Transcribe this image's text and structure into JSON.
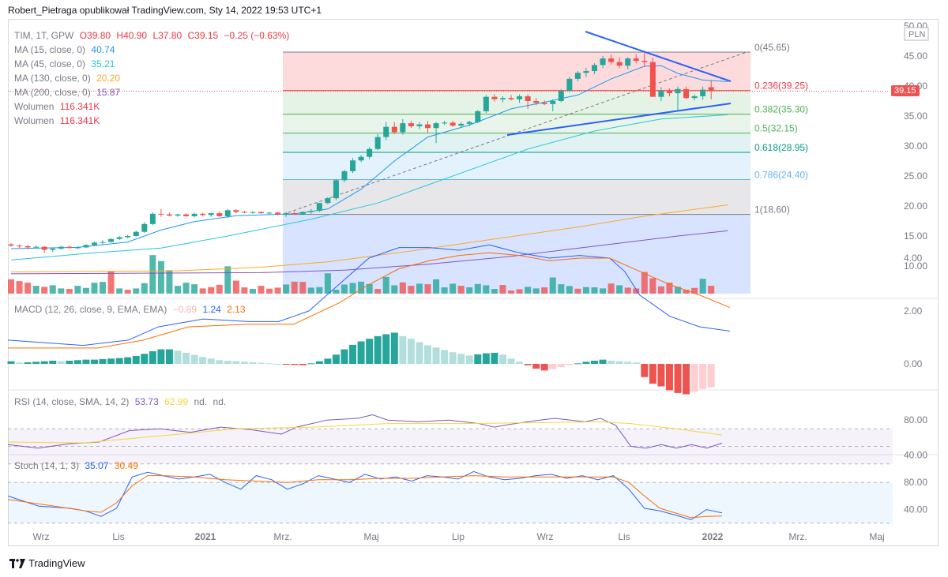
{
  "header": {
    "text": "Robert_Pietraga opublikował TradingView.com, Sty 14, 2022 19:53 UTC+1"
  },
  "main_legend": {
    "symbol": "TIM, 1T, GPW",
    "o": "O39.80",
    "h": "H40.90",
    "l": "L37.80",
    "c": "C39.15",
    "chg": "−0.25 (−0.63%)",
    "ma": [
      {
        "label": "MA (15, close, 0)",
        "value": "40.74",
        "color": "#2196f3"
      },
      {
        "label": "MA (45, close, 0)",
        "value": "35.21",
        "color": "#26c6da"
      },
      {
        "label": "MA (130, close, 0)",
        "value": "20.20",
        "color": "#ffa726"
      },
      {
        "label": "MA (200, close, 0)",
        "value": "15.87",
        "color": "#7e57c2"
      }
    ],
    "volume": [
      {
        "label": "Wolumen",
        "value": "116.341K"
      },
      {
        "label": "Wolumen",
        "value": "116.341K"
      }
    ]
  },
  "price_axis": {
    "currency": "PLN",
    "ticks": [
      "50.00",
      "45.00",
      "40.00",
      "35.00",
      "30.00",
      "25.00",
      "20.00",
      "15.00",
      "10.00"
    ],
    "last_price": "39.15"
  },
  "fib_levels": [
    {
      "label": "0(45.65)",
      "value": 45.65,
      "color": "#787b86"
    },
    {
      "label": "0.236(39.25)",
      "value": 39.25,
      "color": "#f23645"
    },
    {
      "label": "0.382(35.30)",
      "value": 35.3,
      "color": "#4caf50"
    },
    {
      "label": "0.5(32.15)",
      "value": 32.15,
      "color": "#4caf50"
    },
    {
      "label": "0.618(28.95)",
      "value": 28.95,
      "color": "#089981"
    },
    {
      "label": "0.786(24.40)",
      "value": 24.4,
      "color": "#64b5f6"
    },
    {
      "label": "1(18.60)",
      "value": 18.6,
      "color": "#787b86"
    }
  ],
  "macd_legend": {
    "label": "MACD (12, 26, close, 9, EMA, EMA)",
    "hist": "−0.89",
    "macd": "1.24",
    "signal": "2.13"
  },
  "macd_axis": {
    "ticks": [
      "4.00",
      "2.00",
      "0.00"
    ]
  },
  "rsi_legend": {
    "label": "RSI (14, close, SMA, 14, 2)",
    "rsi": "53.73",
    "ma": "62.99",
    "n1": "nd.",
    "n2": "nd."
  },
  "rsi_axis": {
    "ticks": [
      "80.00",
      "40.00"
    ]
  },
  "stoch_legend": {
    "label": "Stoch (14, 1, 3)",
    "k": "35.07",
    "d": "30.49"
  },
  "stoch_axis": {
    "ticks": [
      "80.00",
      "40.00"
    ]
  },
  "time_axis": {
    "labels": [
      "Wrz",
      "Lis",
      "2021",
      "Mrz.",
      "Maj",
      "Lip",
      "Wrz",
      "Lis",
      "2022",
      "Mrz.",
      "Maj"
    ]
  },
  "footer": {
    "brand": "TradingView"
  },
  "colors": {
    "up": "#26a69a",
    "down": "#ef5350",
    "volume_up": "#26a69a",
    "volume_down": "#ef5350"
  },
  "chart_data": {
    "type": "candlestick",
    "title": "TIM, 1T, GPW",
    "ylim": [
      6,
      52
    ],
    "x": [
      "Wrz",
      "Lis",
      "2021",
      "Mrz.",
      "Maj",
      "Lip",
      "Wrz",
      "Lis",
      "2022"
    ],
    "candles": [
      [
        13.6,
        13.8,
        13.2,
        13.4
      ],
      [
        13.4,
        13.6,
        13.0,
        13.3
      ],
      [
        13.3,
        13.5,
        12.8,
        13.1
      ],
      [
        13.1,
        13.4,
        12.9,
        13.2
      ],
      [
        13.2,
        13.3,
        12.2,
        12.7
      ],
      [
        12.7,
        13.0,
        12.3,
        12.9
      ],
      [
        12.9,
        13.4,
        12.7,
        13.2
      ],
      [
        13.2,
        13.4,
        12.9,
        13.0
      ],
      [
        13.0,
        13.3,
        12.8,
        13.1
      ],
      [
        13.1,
        13.6,
        13.0,
        13.5
      ],
      [
        13.5,
        14.1,
        13.3,
        13.9
      ],
      [
        13.9,
        14.3,
        13.6,
        14.0
      ],
      [
        14.0,
        14.6,
        13.9,
        14.5
      ],
      [
        14.5,
        15.0,
        14.3,
        14.8
      ],
      [
        14.8,
        15.2,
        14.6,
        15.0
      ],
      [
        15.0,
        15.9,
        14.9,
        15.7
      ],
      [
        15.7,
        17.3,
        15.5,
        17.0
      ],
      [
        17.0,
        19.0,
        16.8,
        18.7
      ],
      [
        18.7,
        19.5,
        18.2,
        18.6
      ],
      [
        18.6,
        18.9,
        18.3,
        18.4
      ],
      [
        18.4,
        18.7,
        18.2,
        18.6
      ],
      [
        18.6,
        18.8,
        18.2,
        18.3
      ],
      [
        18.3,
        18.9,
        18.1,
        18.7
      ],
      [
        18.7,
        18.9,
        18.3,
        18.5
      ],
      [
        18.5,
        18.9,
        18.2,
        18.8
      ],
      [
        18.8,
        19.1,
        18.2,
        18.3
      ],
      [
        18.3,
        19.5,
        18.0,
        19.3
      ],
      [
        19.3,
        19.5,
        18.8,
        19.0
      ],
      [
        19.0,
        19.2,
        18.8,
        18.9
      ],
      [
        18.9,
        19.1,
        18.7,
        19.0
      ],
      [
        19.0,
        19.1,
        18.7,
        18.8
      ],
      [
        18.8,
        19.0,
        18.6,
        18.9
      ],
      [
        18.9,
        19.0,
        18.4,
        18.6
      ],
      [
        18.6,
        19.0,
        18.2,
        18.8
      ],
      [
        18.8,
        19.1,
        18.5,
        18.6
      ],
      [
        18.6,
        19.1,
        18.5,
        19.0
      ],
      [
        19.0,
        19.5,
        18.7,
        19.2
      ],
      [
        19.2,
        20.5,
        19.0,
        20.5
      ],
      [
        20.5,
        21.5,
        20.3,
        21.3
      ],
      [
        21.3,
        24.5,
        21.0,
        24.3
      ],
      [
        24.3,
        26.0,
        24.0,
        25.8
      ],
      [
        25.8,
        28.0,
        25.5,
        27.6
      ],
      [
        27.6,
        28.5,
        27.3,
        28.2
      ],
      [
        28.2,
        29.8,
        27.8,
        29.5
      ],
      [
        29.5,
        32.0,
        29.3,
        31.5
      ],
      [
        31.5,
        34.0,
        31.0,
        33.2
      ],
      [
        33.2,
        34.0,
        32.0,
        32.3
      ],
      [
        32.3,
        34.5,
        31.9,
        33.8
      ],
      [
        33.8,
        34.2,
        33.0,
        33.3
      ],
      [
        33.3,
        34.0,
        32.8,
        33.6
      ],
      [
        33.6,
        34.2,
        32.2,
        33.0
      ],
      [
        33.0,
        34.0,
        30.5,
        33.8
      ],
      [
        33.8,
        34.2,
        33.5,
        33.9
      ],
      [
        33.9,
        34.2,
        33.2,
        33.4
      ],
      [
        33.4,
        34.0,
        33.0,
        33.7
      ],
      [
        33.7,
        34.2,
        33.3,
        34.0
      ],
      [
        34.0,
        36.0,
        33.8,
        35.8
      ],
      [
        35.8,
        38.5,
        35.5,
        38.2
      ],
      [
        38.2,
        38.6,
        37.4,
        37.8
      ],
      [
        37.8,
        38.3,
        37.3,
        38.0
      ],
      [
        38.0,
        38.5,
        37.6,
        37.8
      ],
      [
        37.8,
        38.6,
        37.2,
        38.3
      ],
      [
        38.3,
        38.6,
        36.2,
        37.5
      ],
      [
        37.5,
        38.0,
        36.8,
        37.2
      ],
      [
        37.2,
        37.6,
        36.8,
        37.0
      ],
      [
        37.0,
        37.8,
        35.8,
        37.5
      ],
      [
        37.5,
        39.5,
        37.3,
        39.2
      ],
      [
        39.2,
        41.5,
        39.0,
        41.2
      ],
      [
        41.2,
        42.5,
        40.8,
        42.2
      ],
      [
        42.2,
        43.0,
        41.5,
        42.5
      ],
      [
        42.5,
        43.8,
        42.0,
        43.5
      ],
      [
        43.5,
        45.0,
        43.0,
        44.6
      ],
      [
        44.6,
        45.3,
        43.5,
        44.0
      ],
      [
        44.0,
        44.7,
        43.0,
        43.4
      ],
      [
        43.4,
        44.8,
        42.8,
        44.6
      ],
      [
        44.6,
        45.3,
        43.8,
        44.2
      ],
      [
        44.2,
        45.8,
        43.2,
        44.0
      ],
      [
        44.0,
        44.7,
        38.5,
        38.2
      ],
      [
        38.2,
        39.8,
        37.5,
        39.2
      ],
      [
        39.2,
        39.6,
        38.3,
        38.8
      ],
      [
        38.8,
        39.9,
        36.0,
        39.5
      ],
      [
        39.5,
        39.9,
        37.8,
        38.0
      ],
      [
        38.0,
        38.6,
        37.6,
        38.3
      ],
      [
        38.3,
        39.9,
        37.7,
        39.4
      ],
      [
        39.8,
        40.9,
        37.8,
        39.15
      ]
    ],
    "volume": [
      [
        5.5,
        0
      ],
      [
        4.8,
        0
      ],
      [
        4.2,
        0
      ],
      [
        3.0,
        1
      ],
      [
        2.6,
        0
      ],
      [
        3.2,
        1
      ],
      [
        2.0,
        1
      ],
      [
        1.8,
        0
      ],
      [
        3.0,
        1
      ],
      [
        2.2,
        1
      ],
      [
        4.2,
        1
      ],
      [
        4.5,
        1
      ],
      [
        8.5,
        0
      ],
      [
        2.0,
        1
      ],
      [
        1.5,
        0
      ],
      [
        2.0,
        1
      ],
      [
        4.0,
        1
      ],
      [
        14.8,
        1
      ],
      [
        12.5,
        1
      ],
      [
        9.0,
        1
      ],
      [
        3.0,
        1
      ],
      [
        4.2,
        1
      ],
      [
        3.6,
        1
      ],
      [
        2.0,
        0
      ],
      [
        2.5,
        0
      ],
      [
        3.4,
        0
      ],
      [
        10.5,
        1
      ],
      [
        5.0,
        0
      ],
      [
        2.4,
        0
      ],
      [
        1.8,
        1
      ],
      [
        3.0,
        0
      ],
      [
        1.9,
        0
      ],
      [
        2.3,
        0
      ],
      [
        3.5,
        1
      ],
      [
        4.6,
        0
      ],
      [
        4.5,
        0
      ],
      [
        2.3,
        1
      ],
      [
        2.5,
        1
      ],
      [
        7.8,
        1
      ],
      [
        1.5,
        1
      ],
      [
        3.5,
        1
      ],
      [
        4.1,
        1
      ],
      [
        4.6,
        1
      ],
      [
        3.7,
        1
      ],
      [
        1.8,
        0
      ],
      [
        6.4,
        1
      ],
      [
        3.2,
        1
      ],
      [
        4.3,
        0
      ],
      [
        3.0,
        0
      ],
      [
        3.8,
        1
      ],
      [
        3.6,
        0
      ],
      [
        5.5,
        1
      ],
      [
        2.4,
        1
      ],
      [
        3.8,
        1
      ],
      [
        3.0,
        0
      ],
      [
        2.4,
        1
      ],
      [
        3.7,
        1
      ],
      [
        3.2,
        1
      ],
      [
        1.8,
        1
      ],
      [
        3.3,
        0
      ],
      [
        1.2,
        0
      ],
      [
        1.7,
        0
      ],
      [
        2.6,
        1
      ],
      [
        2.0,
        1
      ],
      [
        2.4,
        0
      ],
      [
        6.2,
        1
      ],
      [
        3.6,
        1
      ],
      [
        2.9,
        1
      ],
      [
        1.9,
        0
      ],
      [
        2.5,
        1
      ],
      [
        2.4,
        1
      ],
      [
        2.0,
        1
      ],
      [
        3.9,
        0
      ],
      [
        3.2,
        1
      ],
      [
        2.3,
        0
      ],
      [
        2.0,
        0
      ],
      [
        8.3,
        0
      ],
      [
        5.9,
        0
      ],
      [
        2.8,
        0
      ],
      [
        4.2,
        0
      ],
      [
        2.6,
        1
      ],
      [
        1.5,
        0
      ],
      [
        2.2,
        0
      ],
      [
        5.7,
        1
      ],
      [
        3.0,
        0
      ]
    ],
    "series": [
      {
        "name": "MA (15, close, 0)",
        "color": "#2196f3",
        "values": [
          [
            0,
            12.9
          ],
          [
            8,
            13.1
          ],
          [
            14,
            14.0
          ],
          [
            18,
            16.0
          ],
          [
            22,
            17.4
          ],
          [
            27,
            18.4
          ],
          [
            34,
            18.7
          ],
          [
            38,
            19.5
          ],
          [
            42,
            22.8
          ],
          [
            46,
            27.5
          ],
          [
            50,
            31.5
          ],
          [
            55,
            33.5
          ],
          [
            60,
            36.2
          ],
          [
            64,
            37.3
          ],
          [
            68,
            38.5
          ],
          [
            72,
            41.2
          ],
          [
            76,
            43.3
          ],
          [
            78,
            43.4
          ],
          [
            80,
            42.1
          ],
          [
            83,
            41.0
          ],
          [
            86,
            40.74
          ]
        ]
      },
      {
        "name": "MA (45, close, 0)",
        "color": "#26c6da",
        "values": [
          [
            0,
            11.0
          ],
          [
            10,
            12.2
          ],
          [
            18,
            13.0
          ],
          [
            26,
            15.0
          ],
          [
            36,
            17.8
          ],
          [
            44,
            20.5
          ],
          [
            54,
            25.5
          ],
          [
            62,
            29.5
          ],
          [
            70,
            32.5
          ],
          [
            78,
            34.5
          ],
          [
            86,
            35.21
          ]
        ]
      },
      {
        "name": "MA (130, close, 0)",
        "color": "#ffa726",
        "values": [
          [
            0,
            9.0
          ],
          [
            20,
            9.2
          ],
          [
            30,
            9.8
          ],
          [
            38,
            10.7
          ],
          [
            48,
            12.5
          ],
          [
            58,
            14.5
          ],
          [
            68,
            16.5
          ],
          [
            76,
            18.3
          ],
          [
            86,
            20.2
          ]
        ]
      },
      {
        "name": "MA (200, close, 0)",
        "color": "#7e57c2",
        "values": [
          [
            0,
            8.7
          ],
          [
            30,
            8.9
          ],
          [
            40,
            9.3
          ],
          [
            50,
            10.3
          ],
          [
            60,
            11.6
          ],
          [
            70,
            13.3
          ],
          [
            80,
            15.0
          ],
          [
            86,
            15.87
          ]
        ]
      }
    ]
  }
}
